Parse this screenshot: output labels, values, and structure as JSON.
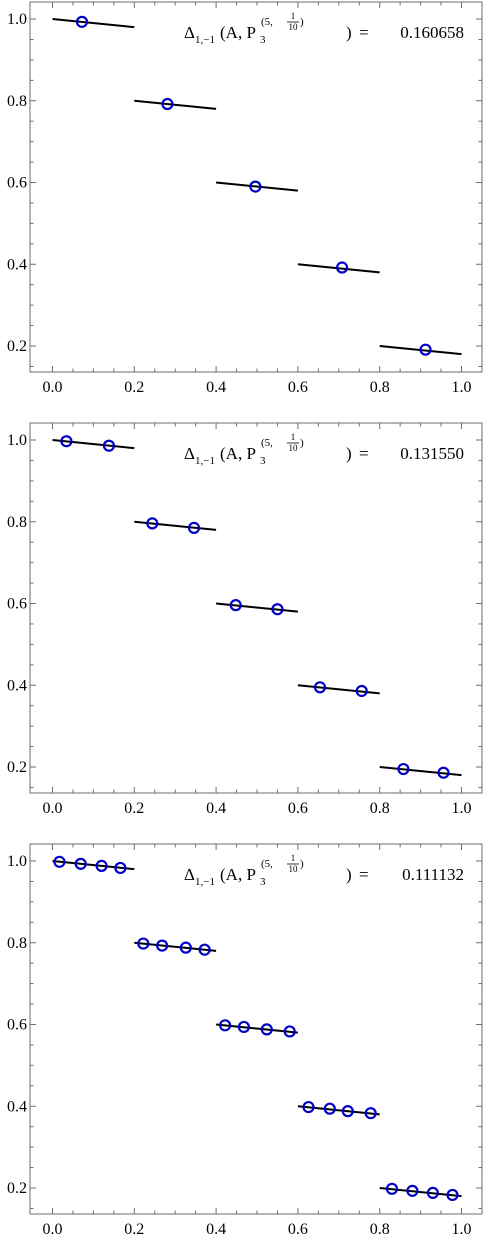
{
  "chart_data": [
    {
      "type": "scatter",
      "xlim": [
        -0.02,
        1.02
      ],
      "ylim": [
        0.135,
        1.02
      ],
      "xticks": [
        "0.0",
        "0.2",
        "0.4",
        "0.6",
        "0.8",
        "1.0"
      ],
      "yticks": [
        "0.2",
        "0.4",
        "0.6",
        "0.8",
        "1.0"
      ],
      "annotation": {
        "delta_subscript": "1,−1",
        "open": "(A, P",
        "p_subscript": "3",
        "superscript_open": "(5, ",
        "frac_num": "1",
        "frac_den": "10",
        "superscript_close": ")",
        "close": ")",
        "equals": "= ",
        "value": "0.160658"
      },
      "segments": [
        {
          "x": [
            0.0,
            0.2
          ],
          "y": [
            1.0,
            0.98
          ]
        },
        {
          "x": [
            0.2,
            0.4
          ],
          "y": [
            0.8,
            0.78
          ]
        },
        {
          "x": [
            0.4,
            0.6
          ],
          "y": [
            0.6,
            0.58
          ]
        },
        {
          "x": [
            0.6,
            0.8
          ],
          "y": [
            0.4,
            0.38
          ]
        },
        {
          "x": [
            0.8,
            1.0
          ],
          "y": [
            0.2,
            0.18
          ]
        }
      ],
      "points": {
        "x": [
          0.072,
          0.281,
          0.496,
          0.708,
          0.912
        ],
        "y": [
          0.993,
          0.792,
          0.59,
          0.392,
          0.191
        ]
      },
      "grid": false,
      "legend": "none"
    },
    {
      "type": "scatter",
      "xlim": [
        -0.02,
        1.02
      ],
      "ylim": [
        0.135,
        1.02
      ],
      "xticks": [
        "0.0",
        "0.2",
        "0.4",
        "0.6",
        "0.8",
        "1.0"
      ],
      "yticks": [
        "0.2",
        "0.4",
        "0.6",
        "0.8",
        "1.0"
      ],
      "annotation": {
        "delta_subscript": "1,−1",
        "open": "(A, P",
        "p_subscript": "3",
        "superscript_open": "(5, ",
        "frac_num": "1",
        "frac_den": "10",
        "superscript_close": ")",
        "close": ")",
        "equals": "= ",
        "value": "0.131550"
      },
      "segments": [
        {
          "x": [
            0.0,
            0.2
          ],
          "y": [
            1.0,
            0.98
          ]
        },
        {
          "x": [
            0.2,
            0.4
          ],
          "y": [
            0.8,
            0.78
          ]
        },
        {
          "x": [
            0.4,
            0.6
          ],
          "y": [
            0.6,
            0.58
          ]
        },
        {
          "x": [
            0.6,
            0.8
          ],
          "y": [
            0.4,
            0.38
          ]
        },
        {
          "x": [
            0.8,
            1.0
          ],
          "y": [
            0.2,
            0.18
          ]
        }
      ],
      "points": {
        "x": [
          0.034,
          0.138,
          0.244,
          0.346,
          0.448,
          0.55,
          0.654,
          0.756,
          0.858,
          0.956
        ],
        "y": [
          0.997,
          0.986,
          0.796,
          0.785,
          0.596,
          0.586,
          0.395,
          0.386,
          0.195,
          0.186
        ]
      },
      "grid": false,
      "legend": "none"
    },
    {
      "type": "scatter",
      "xlim": [
        -0.02,
        1.02
      ],
      "ylim": [
        0.135,
        1.02
      ],
      "xticks": [
        "0.0",
        "0.2",
        "0.4",
        "0.6",
        "0.8",
        "1.0"
      ],
      "yticks": [
        "0.2",
        "0.4",
        "0.6",
        "0.8",
        "1.0"
      ],
      "annotation": {
        "delta_subscript": "1,−1",
        "open": "(A, P",
        "p_subscript": "3",
        "superscript_open": "(5, ",
        "frac_num": "1",
        "frac_den": "10",
        "superscript_close": ")",
        "close": ")",
        "equals": "= ",
        "value": "0.111132"
      },
      "segments": [
        {
          "x": [
            0.0,
            0.2
          ],
          "y": [
            1.0,
            0.98
          ]
        },
        {
          "x": [
            0.2,
            0.4
          ],
          "y": [
            0.8,
            0.78
          ]
        },
        {
          "x": [
            0.4,
            0.6
          ],
          "y": [
            0.6,
            0.58
          ]
        },
        {
          "x": [
            0.6,
            0.8
          ],
          "y": [
            0.4,
            0.38
          ]
        },
        {
          "x": [
            0.8,
            1.0
          ],
          "y": [
            0.2,
            0.18
          ]
        }
      ],
      "points": {
        "x": [
          0.017,
          0.069,
          0.12,
          0.166,
          0.222,
          0.268,
          0.326,
          0.372,
          0.422,
          0.468,
          0.524,
          0.58,
          0.626,
          0.678,
          0.722,
          0.778,
          0.83,
          0.88,
          0.93,
          0.978
        ],
        "y": [
          0.998,
          0.993,
          0.988,
          0.983,
          0.798,
          0.793,
          0.788,
          0.783,
          0.598,
          0.594,
          0.588,
          0.583,
          0.398,
          0.394,
          0.388,
          0.383,
          0.198,
          0.193,
          0.188,
          0.183
        ]
      },
      "grid": false,
      "legend": "none"
    }
  ]
}
